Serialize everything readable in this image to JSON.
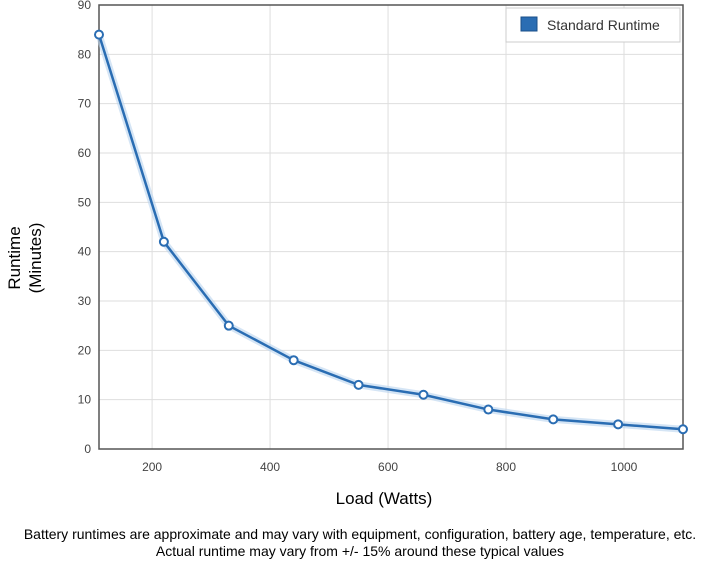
{
  "chart_data": {
    "type": "line",
    "xlabel": "Load (Watts)",
    "ylabel": [
      "Runtime",
      "(Minutes)"
    ],
    "xlim": [
      110,
      1100
    ],
    "ylim": [
      0,
      90
    ],
    "xticks": [
      200,
      400,
      600,
      800,
      1000
    ],
    "yticks": [
      0,
      10,
      20,
      30,
      40,
      50,
      60,
      70,
      80,
      90
    ],
    "grid": true,
    "legend_position": "top-right",
    "series": [
      {
        "name": "Standard Runtime",
        "color": "#2a6db3",
        "x": [
          110,
          220,
          330,
          440,
          550,
          660,
          770,
          880,
          990,
          1100
        ],
        "y": [
          84,
          42,
          25,
          18,
          13,
          11,
          8,
          6,
          5,
          4
        ]
      }
    ]
  },
  "footnote": {
    "line1": "Battery runtimes are approximate and may vary with equipment, configuration, battery age, temperature, etc.",
    "line2": "Actual runtime may vary from +/- 15% around these typical values"
  }
}
